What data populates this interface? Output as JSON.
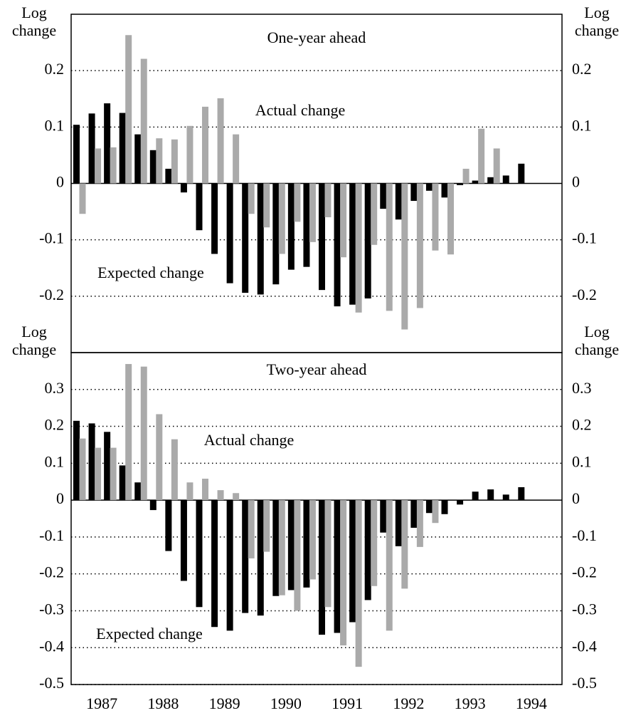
{
  "chart_data": [
    {
      "type": "bar",
      "title": "One-year ahead",
      "ylabel": "Log change",
      "x": [
        1987.125,
        1987.375,
        1987.625,
        1987.875,
        1988.125,
        1988.375,
        1988.625,
        1988.875,
        1989.125,
        1989.375,
        1989.625,
        1989.875,
        1990.125,
        1990.375,
        1990.625,
        1990.875,
        1991.125,
        1991.375,
        1991.625,
        1991.875,
        1992.125,
        1992.375,
        1992.625,
        1992.875,
        1993.125,
        1993.375,
        1993.625,
        1993.875,
        1994.125,
        1994.375
      ],
      "series": [
        {
          "name": "Expected change",
          "color": "#000000",
          "values": [
            0.104,
            0.124,
            0.142,
            0.125,
            0.087,
            0.059,
            0.026,
            -0.016,
            -0.083,
            -0.125,
            -0.177,
            -0.194,
            -0.197,
            -0.179,
            -0.153,
            -0.148,
            -0.189,
            -0.218,
            -0.215,
            -0.204,
            -0.045,
            -0.064,
            -0.031,
            -0.013,
            -0.025,
            -0.003,
            0.005,
            0.011,
            0.014,
            0.035
          ]
        },
        {
          "name": "Actual change",
          "color": "#aaaaaa",
          "values": [
            -0.054,
            0.062,
            0.064,
            0.263,
            0.221,
            0.08,
            0.078,
            0.102,
            0.136,
            0.151,
            0.087,
            -0.054,
            -0.078,
            -0.125,
            -0.068,
            -0.104,
            -0.06,
            -0.131,
            -0.229,
            -0.109,
            -0.226,
            -0.259,
            -0.221,
            -0.119,
            -0.126,
            0.026,
            0.097,
            0.062,
            null,
            null
          ]
        }
      ],
      "xlim": [
        1987,
        1995
      ],
      "ylim": [
        -0.3,
        0.3
      ],
      "yticks": [
        -0.2,
        -0.1,
        0,
        0.1,
        0.2
      ],
      "grid": true
    },
    {
      "type": "bar",
      "title": "Two-year ahead",
      "ylabel": "Log change",
      "x": [
        1987.125,
        1987.375,
        1987.625,
        1987.875,
        1988.125,
        1988.375,
        1988.625,
        1988.875,
        1989.125,
        1989.375,
        1989.625,
        1989.875,
        1990.125,
        1990.375,
        1990.625,
        1990.875,
        1991.125,
        1991.375,
        1991.625,
        1991.875,
        1992.125,
        1992.375,
        1992.625,
        1992.875,
        1993.125,
        1993.375,
        1993.625,
        1993.875,
        1994.125,
        1994.375
      ],
      "series": [
        {
          "name": "Expected change",
          "color": "#000000",
          "values": [
            0.215,
            0.208,
            0.185,
            0.094,
            0.048,
            -0.027,
            -0.138,
            -0.219,
            -0.29,
            -0.344,
            -0.354,
            -0.306,
            -0.313,
            -0.26,
            -0.244,
            -0.237,
            -0.365,
            -0.36,
            -0.331,
            -0.271,
            -0.088,
            -0.125,
            -0.075,
            -0.035,
            -0.038,
            -0.012,
            0.023,
            0.029,
            0.015,
            0.035
          ]
        },
        {
          "name": "Actual change",
          "color": "#aaaaaa",
          "values": [
            0.167,
            0.142,
            0.142,
            0.369,
            0.362,
            0.233,
            0.165,
            0.048,
            0.058,
            0.027,
            0.019,
            -0.158,
            -0.14,
            -0.258,
            -0.3,
            -0.215,
            -0.29,
            -0.394,
            -0.452,
            -0.233,
            -0.354,
            -0.24,
            -0.127,
            -0.062,
            null,
            null,
            null,
            null,
            null,
            null
          ]
        }
      ],
      "xlim": [
        1987,
        1995
      ],
      "ylim": [
        -0.5,
        0.4
      ],
      "yticks": [
        -0.5,
        -0.4,
        -0.3,
        -0.2,
        -0.1,
        0,
        0.1,
        0.2,
        0.3
      ],
      "grid": true,
      "xticks": [
        {
          "value": 1987.5,
          "label": "1987"
        },
        {
          "value": 1988.5,
          "label": "1988"
        },
        {
          "value": 1989.5,
          "label": "1989"
        },
        {
          "value": 1990.5,
          "label": "1990"
        },
        {
          "value": 1991.5,
          "label": "1991"
        },
        {
          "value": 1992.5,
          "label": "1992"
        },
        {
          "value": 1993.5,
          "label": "1993"
        },
        {
          "value": 1994.5,
          "label": "1994"
        }
      ]
    }
  ]
}
